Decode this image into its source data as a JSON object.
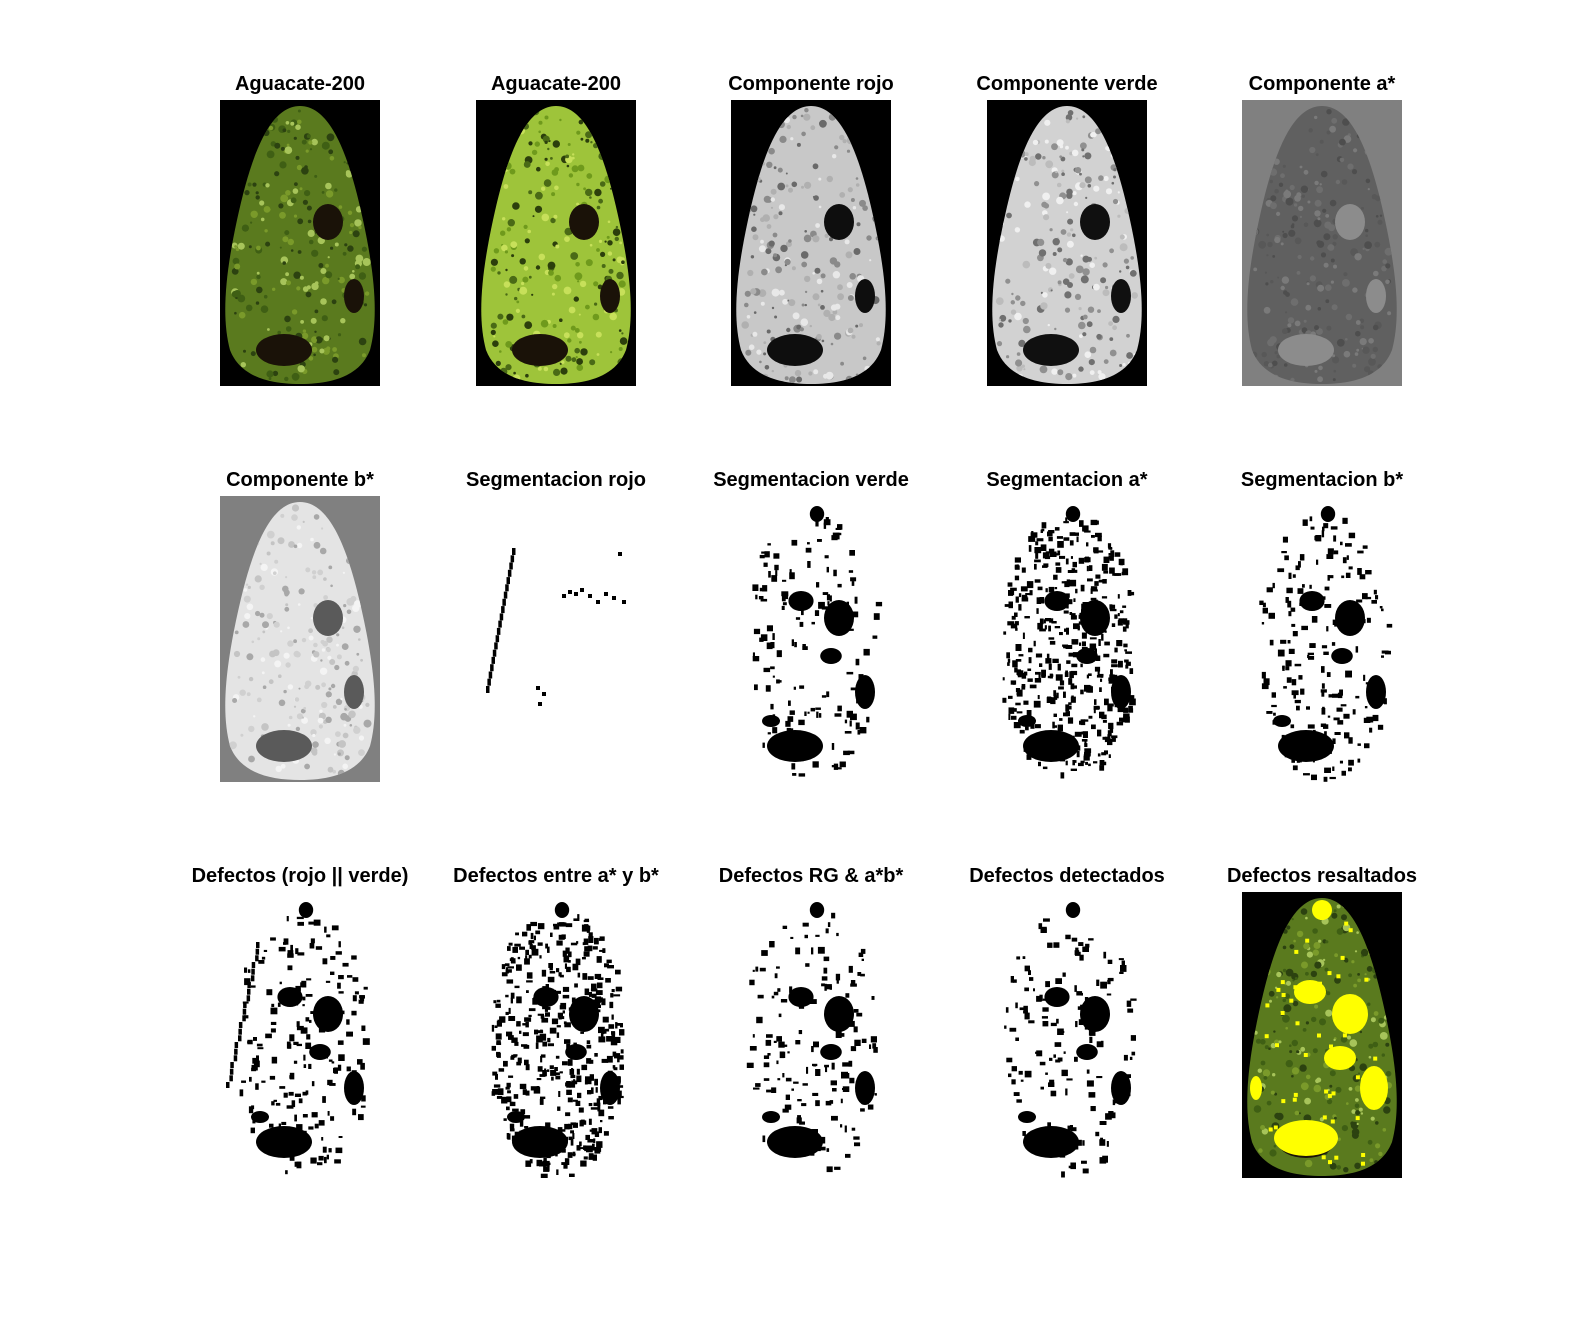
{
  "figure": {
    "panels": [
      {
        "title": "Aguacate-200",
        "kind": "rgb-original"
      },
      {
        "title": "Aguacate-200",
        "kind": "rgb-enhanced"
      },
      {
        "title": "Componente rojo",
        "kind": "gray-red"
      },
      {
        "title": "Componente verde",
        "kind": "gray-green"
      },
      {
        "title": "Componente a*",
        "kind": "gray-a"
      },
      {
        "title": "Componente b*",
        "kind": "gray-b"
      },
      {
        "title": "Segmentacion rojo",
        "kind": "mask-red"
      },
      {
        "title": "Segmentacion verde",
        "kind": "mask-green"
      },
      {
        "title": "Segmentacion a*",
        "kind": "mask-a"
      },
      {
        "title": "Segmentacion b*",
        "kind": "mask-b"
      },
      {
        "title": "Defectos (rojo || verde)",
        "kind": "mask-rg-or"
      },
      {
        "title": "Defectos entre a* y b*",
        "kind": "mask-ab"
      },
      {
        "title": "Defectos RG & a*b*",
        "kind": "mask-and"
      },
      {
        "title": "Defectos detectados",
        "kind": "mask-final"
      },
      {
        "title": "Defectos resaltados",
        "kind": "rgb-highlight"
      }
    ],
    "colors": {
      "avocado_dark": "#2f4a12",
      "avocado_mid": "#5a7a1e",
      "avocado_light": "#9ec43a",
      "highlight": "#ffff00",
      "background_black": "#000000",
      "background_gray": "#808080"
    }
  }
}
